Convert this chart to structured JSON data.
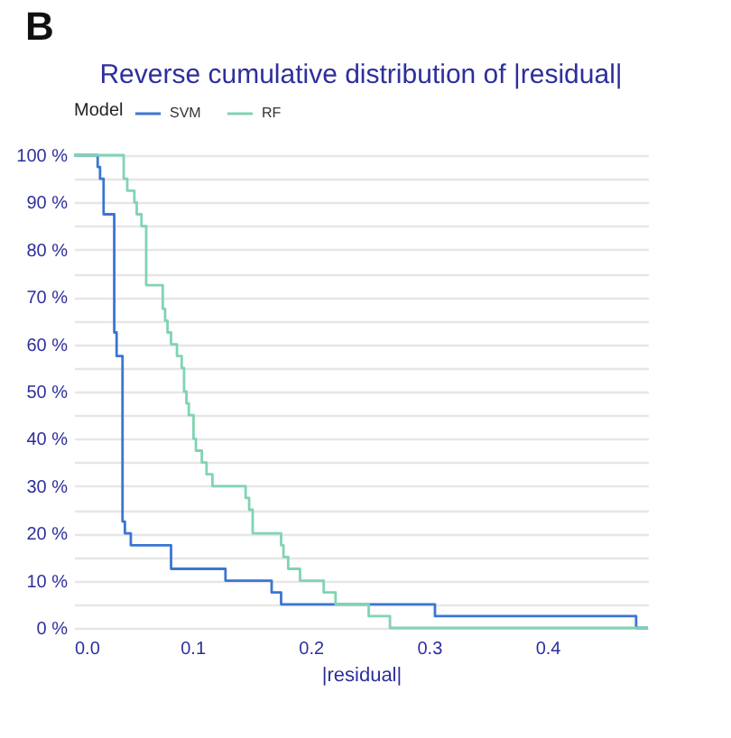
{
  "chart_data": {
    "type": "step",
    "title": "Reverse cumulative distribution of |residual|",
    "xlabel": "|residual|",
    "legend_title": "Model",
    "legend": "top",
    "grid": "y",
    "annotations": [
      "B"
    ],
    "xlim": [
      0,
      0.485
    ],
    "xticks": [
      {
        "value": 0,
        "label": "0.0"
      },
      0.1,
      0.2,
      0.3,
      0.4
    ],
    "ylim": [
      0,
      100
    ],
    "yticks": [
      {
        "value": 0,
        "label": "0 %"
      },
      {
        "value": 5,
        "label": null
      },
      {
        "value": 10,
        "label": "10 %"
      },
      {
        "value": 15,
        "label": null
      },
      {
        "value": 20,
        "label": "20 %"
      },
      {
        "value": 25,
        "label": null
      },
      {
        "value": 30,
        "label": "30 %"
      },
      {
        "value": 35,
        "label": null
      },
      {
        "value": 40,
        "label": "40 %"
      },
      {
        "value": 45,
        "label": null
      },
      {
        "value": 50,
        "label": "50 %"
      },
      {
        "value": 55,
        "label": null
      },
      {
        "value": 60,
        "label": "60 %"
      },
      {
        "value": 65,
        "label": null
      },
      {
        "value": 70,
        "label": "70 %"
      },
      {
        "value": 75,
        "label": null
      },
      {
        "value": 80,
        "label": "80 %"
      },
      {
        "value": 85,
        "label": null
      },
      {
        "value": 90,
        "label": "90 %"
      },
      {
        "value": 95,
        "label": null
      },
      {
        "value": 100,
        "label": "100 %"
      }
    ],
    "series": [
      {
        "name": "SVM",
        "color": "#3a76d2",
        "x": [
          0,
          0.02,
          0.022,
          0.025,
          0.034,
          0.036,
          0.041,
          0.043,
          0.048,
          0.082,
          0.128,
          0.167,
          0.175,
          0.305,
          0.475,
          0.485
        ],
        "values": [
          100,
          97.5,
          95,
          87.5,
          62.5,
          57.5,
          22.5,
          20,
          17.5,
          12.5,
          10,
          7.5,
          5,
          2.5,
          0,
          0
        ]
      },
      {
        "name": "RF",
        "color": "#80d4b2",
        "x": [
          0,
          0.042,
          0.045,
          0.051,
          0.053,
          0.057,
          0.061,
          0.075,
          0.077,
          0.079,
          0.082,
          0.087,
          0.091,
          0.093,
          0.095,
          0.097,
          0.101,
          0.103,
          0.108,
          0.112,
          0.117,
          0.145,
          0.148,
          0.151,
          0.175,
          0.177,
          0.181,
          0.191,
          0.211,
          0.221,
          0.249,
          0.267,
          0.485
        ],
        "values": [
          100,
          95,
          92.5,
          90,
          87.5,
          85,
          72.5,
          67.5,
          65,
          62.5,
          60,
          57.5,
          55,
          50,
          47.5,
          45,
          40,
          37.5,
          35,
          32.5,
          30,
          27.5,
          25,
          20,
          17.5,
          15,
          12.5,
          10,
          7.5,
          5,
          2.5,
          0,
          0
        ]
      }
    ]
  }
}
